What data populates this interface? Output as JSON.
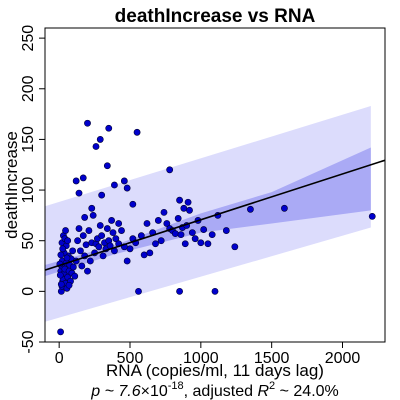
{
  "chart_data": {
    "type": "scatter",
    "title": "deathIncrease vs RNA",
    "xlabel": "RNA (copies/ml, 11 days lag)",
    "ylabel": "deathIncrease",
    "xlim": [
      -100,
      2300
    ],
    "ylim": [
      -50,
      260
    ],
    "xticks": [
      0,
      500,
      1000,
      1500,
      2000
    ],
    "yticks": [
      -50,
      0,
      50,
      100,
      150,
      200,
      250
    ],
    "xtick_labels": [
      "0",
      "500",
      "1000",
      "1500",
      "2000"
    ],
    "ytick_labels": [
      "-50",
      "0",
      "50",
      "100",
      "150",
      "200",
      "250"
    ],
    "stats": {
      "p_prefix": "p ~ 7.6",
      "p_times": "×",
      "p_base": "10",
      "p_exponent": "-18",
      "r2_prefix": ", adjusted ",
      "r2_letter": "R",
      "r2_exponent": "2",
      "r2_suffix": " ~ 24.0%"
    },
    "regression": {
      "slope": 0.0452,
      "intercept": 25.5,
      "x_range": [
        -100,
        2300
      ]
    },
    "confidence_band": {
      "x": [
        -100,
        400,
        1000,
        1500,
        2200
      ],
      "lower": [
        15,
        37,
        58,
        67,
        80
      ],
      "upper": [
        26,
        46,
        77,
        98,
        142
      ]
    },
    "prediction_band": {
      "x": [
        -100,
        2200
      ],
      "lower": [
        -30,
        63
      ],
      "upper": [
        84,
        183
      ]
    },
    "colors": {
      "points": "#0000cc",
      "point_edge": "#000033",
      "line": "#000000",
      "confidence_band": "#aaaaf5",
      "prediction_band": "#dcdcfc"
    },
    "points": [
      {
        "x": 10,
        "y": -40
      },
      {
        "x": 15,
        "y": 0
      },
      {
        "x": 20,
        "y": 5
      },
      {
        "x": 25,
        "y": 10
      },
      {
        "x": 30,
        "y": 15
      },
      {
        "x": 12,
        "y": 20
      },
      {
        "x": 18,
        "y": 25
      },
      {
        "x": 22,
        "y": 30
      },
      {
        "x": 28,
        "y": 12
      },
      {
        "x": 35,
        "y": 18
      },
      {
        "x": 40,
        "y": 22
      },
      {
        "x": 45,
        "y": 8
      },
      {
        "x": 50,
        "y": 28
      },
      {
        "x": 55,
        "y": 3
      },
      {
        "x": 60,
        "y": 14
      },
      {
        "x": 65,
        "y": 35
      },
      {
        "x": 70,
        "y": 20
      },
      {
        "x": 75,
        "y": 26
      },
      {
        "x": 80,
        "y": 10
      },
      {
        "x": 85,
        "y": 32
      },
      {
        "x": 90,
        "y": 18
      },
      {
        "x": 95,
        "y": 40
      },
      {
        "x": 100,
        "y": 24
      },
      {
        "x": 20,
        "y": 48
      },
      {
        "x": 30,
        "y": 55
      },
      {
        "x": 40,
        "y": 52
      },
      {
        "x": 50,
        "y": 45
      },
      {
        "x": 60,
        "y": 50
      },
      {
        "x": 35,
        "y": 38
      },
      {
        "x": 45,
        "y": 60
      },
      {
        "x": 25,
        "y": 42
      },
      {
        "x": 55,
        "y": 33
      },
      {
        "x": 15,
        "y": 7
      },
      {
        "x": 8,
        "y": 16
      },
      {
        "x": 5,
        "y": 27
      },
      {
        "x": 12,
        "y": 36
      },
      {
        "x": 70,
        "y": 6
      },
      {
        "x": 110,
        "y": 15
      },
      {
        "x": 120,
        "y": 30
      },
      {
        "x": 130,
        "y": 50
      },
      {
        "x": 140,
        "y": 62
      },
      {
        "x": 150,
        "y": 40
      },
      {
        "x": 160,
        "y": 25
      },
      {
        "x": 170,
        "y": 55
      },
      {
        "x": 180,
        "y": 35
      },
      {
        "x": 190,
        "y": 46
      },
      {
        "x": 200,
        "y": 20
      },
      {
        "x": 210,
        "y": 60
      },
      {
        "x": 220,
        "y": 30
      },
      {
        "x": 230,
        "y": 48
      },
      {
        "x": 240,
        "y": 75
      },
      {
        "x": 250,
        "y": 38
      },
      {
        "x": 260,
        "y": 47
      },
      {
        "x": 270,
        "y": 52
      },
      {
        "x": 280,
        "y": 44
      },
      {
        "x": 290,
        "y": 65
      },
      {
        "x": 300,
        "y": 55
      },
      {
        "x": 310,
        "y": 35
      },
      {
        "x": 320,
        "y": 48
      },
      {
        "x": 330,
        "y": 42
      },
      {
        "x": 340,
        "y": 62
      },
      {
        "x": 350,
        "y": 50
      },
      {
        "x": 360,
        "y": 45
      },
      {
        "x": 370,
        "y": 70
      },
      {
        "x": 380,
        "y": 58
      },
      {
        "x": 390,
        "y": 40
      },
      {
        "x": 400,
        "y": 52
      },
      {
        "x": 420,
        "y": 47
      },
      {
        "x": 440,
        "y": 60
      },
      {
        "x": 460,
        "y": 44
      },
      {
        "x": 480,
        "y": 30
      },
      {
        "x": 500,
        "y": 42
      },
      {
        "x": 520,
        "y": 52
      },
      {
        "x": 540,
        "y": 48
      },
      {
        "x": 560,
        "y": 0
      },
      {
        "x": 580,
        "y": 55
      },
      {
        "x": 600,
        "y": 36
      },
      {
        "x": 620,
        "y": 67
      },
      {
        "x": 640,
        "y": 38
      },
      {
        "x": 660,
        "y": 58
      },
      {
        "x": 680,
        "y": 47
      },
      {
        "x": 700,
        "y": 70
      },
      {
        "x": 720,
        "y": 50
      },
      {
        "x": 740,
        "y": 78
      },
      {
        "x": 760,
        "y": 67
      },
      {
        "x": 780,
        "y": 62
      },
      {
        "x": 800,
        "y": 60
      },
      {
        "x": 820,
        "y": 57
      },
      {
        "x": 840,
        "y": 72
      },
      {
        "x": 860,
        "y": 56
      },
      {
        "x": 870,
        "y": 63
      },
      {
        "x": 880,
        "y": 82
      },
      {
        "x": 890,
        "y": 47
      },
      {
        "x": 900,
        "y": 65
      },
      {
        "x": 920,
        "y": 80
      },
      {
        "x": 940,
        "y": 58
      },
      {
        "x": 960,
        "y": 52
      },
      {
        "x": 980,
        "y": 70
      },
      {
        "x": 1000,
        "y": 48
      },
      {
        "x": 1020,
        "y": 61
      },
      {
        "x": 1050,
        "y": 47
      },
      {
        "x": 1080,
        "y": 56
      },
      {
        "x": 1120,
        "y": 75
      },
      {
        "x": 1180,
        "y": 60
      },
      {
        "x": 1240,
        "y": 44
      },
      {
        "x": 1350,
        "y": 81
      },
      {
        "x": 1590,
        "y": 82
      },
      {
        "x": 2210,
        "y": 74
      },
      {
        "x": 850,
        "y": 0
      },
      {
        "x": 1100,
        "y": 0
      },
      {
        "x": 780,
        "y": 120
      },
      {
        "x": 850,
        "y": 90
      },
      {
        "x": 910,
        "y": 88
      },
      {
        "x": 170,
        "y": 112
      },
      {
        "x": 120,
        "y": 109
      },
      {
        "x": 140,
        "y": 97
      },
      {
        "x": 200,
        "y": 166
      },
      {
        "x": 260,
        "y": 143
      },
      {
        "x": 290,
        "y": 150
      },
      {
        "x": 350,
        "y": 161
      },
      {
        "x": 550,
        "y": 157
      },
      {
        "x": 390,
        "y": 105
      },
      {
        "x": 300,
        "y": 95
      },
      {
        "x": 340,
        "y": 124
      },
      {
        "x": 460,
        "y": 109
      },
      {
        "x": 480,
        "y": 102
      },
      {
        "x": 230,
        "y": 82
      },
      {
        "x": 180,
        "y": 73
      },
      {
        "x": 420,
        "y": 67
      },
      {
        "x": 520,
        "y": 86
      }
    ]
  }
}
